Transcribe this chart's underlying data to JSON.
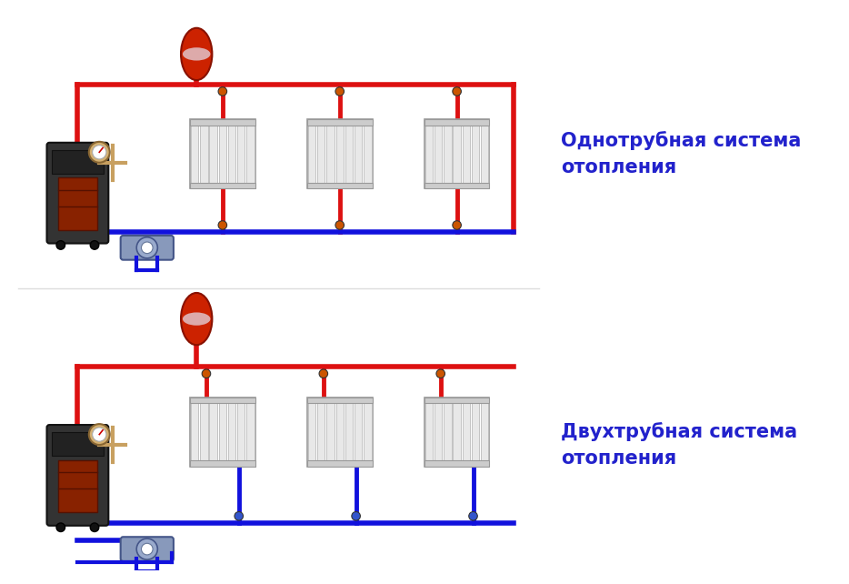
{
  "bg_color": "#ffffff",
  "red_color": "#dd1111",
  "blue_color": "#1111dd",
  "pipe_lw": 4,
  "label1": "Однотрубная система\nотопления",
  "label2": "Двухтрубная система\nотопления",
  "label_color": "#2222cc",
  "label_fontsize": 15,
  "label_fontweight": "bold",
  "tank_color": "#cc2200",
  "radiator_facecolor": "#f0f0f0",
  "radiator_edgecolor": "#aaaaaa",
  "boiler_dark": "#2a2a2a",
  "boiler_mid": "#444444",
  "boiler_red": "#bb2200",
  "gauge_color": "#c8a060",
  "manifold_color": "#8899cc",
  "valve_red": "#cc5500",
  "valve_blue": "#3355cc"
}
